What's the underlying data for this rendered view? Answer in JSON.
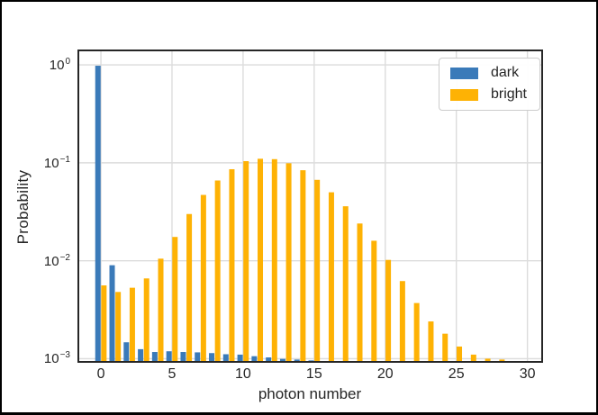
{
  "colors": {
    "dark_series": "#3a7ab9",
    "bright_series": "#feb204",
    "grid": "#dcdcdc",
    "spine": "#262626",
    "text": "#262626",
    "figure_border": "#000000",
    "legend_border": "#cccccc"
  },
  "chart_data": {
    "type": "bar",
    "title": "",
    "xlabel": "photon number",
    "ylabel": "Probability",
    "x_is_photon_number_starting_at": 0,
    "series": [
      {
        "name": "dark",
        "values": [
          0.98,
          0.009,
          0.00147,
          0.00125,
          0.00117,
          0.00119,
          0.00117,
          0.00116,
          0.00114,
          0.00111,
          0.0011,
          0.00106,
          0.00103,
          0.000995,
          0.00098,
          0.00096,
          0.00094
        ]
      },
      {
        "name": "bright",
        "values": [
          0.0056,
          0.0048,
          0.0053,
          0.0066,
          0.0105,
          0.0175,
          0.03,
          0.047,
          0.066,
          0.086,
          0.104,
          0.11,
          0.109,
          0.099,
          0.084,
          0.067,
          0.05,
          0.036,
          0.024,
          0.016,
          0.0102,
          0.0062,
          0.0037,
          0.0024,
          0.0018,
          0.00133,
          0.0011,
          0.001,
          0.00098
        ]
      }
    ],
    "x_ticks": [
      0,
      5,
      10,
      15,
      20,
      25,
      30
    ],
    "y_ticks": [
      {
        "base": "10",
        "exp": "0",
        "value": 1
      },
      {
        "base": "10",
        "exp": "−1",
        "value": 0.1
      },
      {
        "base": "10",
        "exp": "−2",
        "value": 0.01
      },
      {
        "base": "10",
        "exp": "−3",
        "value": 0.001
      }
    ],
    "xlim": [
      -1.65,
      31.1
    ],
    "ylim_log10": [
      -3.042,
      0.157
    ],
    "yscale": "log",
    "grid": true,
    "legend_position": "upper right",
    "bar_width_data_units": 0.38,
    "bar_offset_data_units": 0.21
  }
}
